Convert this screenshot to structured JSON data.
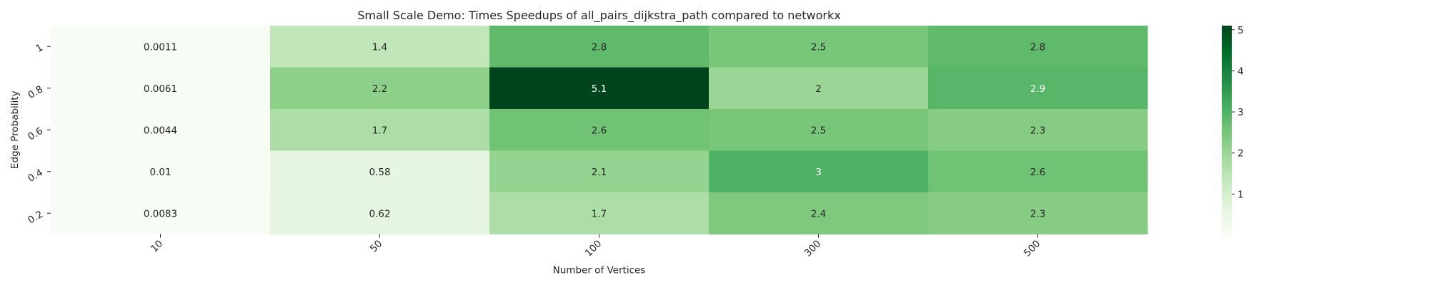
{
  "chart_data": {
    "type": "heatmap",
    "title": "Small Scale Demo: Times Speedups of all_pairs_dijkstra_path compared to networkx",
    "xlabel": "Number of Vertices",
    "ylabel": "Edge Probability",
    "x_categories": [
      "10",
      "50",
      "100",
      "300",
      "500"
    ],
    "y_categories": [
      "1",
      "0.8",
      "0.6",
      "0.4",
      "0.2"
    ],
    "values": [
      [
        0.0011,
        1.4,
        2.8,
        2.5,
        2.8
      ],
      [
        0.0061,
        2.2,
        5.1,
        2.0,
        2.9
      ],
      [
        0.0044,
        1.7,
        2.6,
        2.5,
        2.3
      ],
      [
        0.01,
        0.58,
        2.1,
        3.0,
        2.6
      ],
      [
        0.0083,
        0.62,
        1.7,
        2.4,
        2.3
      ]
    ],
    "cell_labels": [
      [
        "0.0011",
        "1.4",
        "2.8",
        "2.5",
        "2.8"
      ],
      [
        "0.0061",
        "2.2",
        "5.1",
        "2",
        "2.9"
      ],
      [
        "0.0044",
        "1.7",
        "2.6",
        "2.5",
        "2.3"
      ],
      [
        "0.01",
        "0.58",
        "2.1",
        "3",
        "2.6"
      ],
      [
        "0.0083",
        "0.62",
        "1.7",
        "2.4",
        "2.3"
      ]
    ],
    "colormap": "Greens",
    "colorbar": {
      "range": [
        0.0011,
        5.1
      ],
      "ticks": [
        1,
        2,
        3,
        4,
        5
      ],
      "tick_labels": [
        "1",
        "2",
        "3",
        "4",
        "5"
      ]
    },
    "grid": false,
    "legend": "colorbar-right"
  }
}
